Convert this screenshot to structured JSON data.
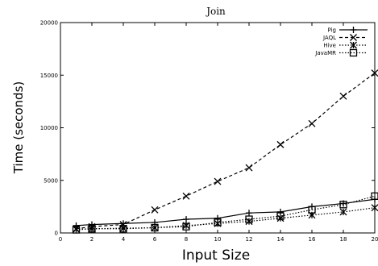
{
  "chart_data": {
    "type": "line",
    "title": "Join",
    "xlabel": "Input Size",
    "ylabel": "Time (seconds)",
    "xlim": [
      0,
      20
    ],
    "ylim": [
      0,
      20000
    ],
    "x_ticks": [
      "0",
      "2",
      "4",
      "6",
      "8",
      "10",
      "12",
      "14",
      "16",
      "18",
      "20"
    ],
    "y_ticks": [
      "0",
      "5000",
      "10000",
      "15000",
      "20000"
    ],
    "grid": false,
    "legend_position": "top-right",
    "series": [
      {
        "name": "Pig",
        "marker": "plus",
        "dash": "solid",
        "x": [
          1,
          2,
          4,
          6,
          8,
          10,
          12,
          14,
          16,
          18,
          20
        ],
        "y": [
          700,
          800,
          900,
          1000,
          1300,
          1400,
          1900,
          2000,
          2500,
          2800,
          3200
        ]
      },
      {
        "name": "JAQL",
        "marker": "x",
        "dash": "dashed",
        "x": [
          1,
          2,
          4,
          6,
          8,
          10,
          12,
          14,
          16,
          18,
          20
        ],
        "y": [
          400,
          600,
          800,
          2200,
          3500,
          4900,
          6200,
          8400,
          10400,
          13000,
          15200
        ]
      },
      {
        "name": "Hive",
        "marker": "asterisk",
        "dash": "dotted",
        "x": [
          1,
          2,
          4,
          6,
          8,
          10,
          12,
          14,
          16,
          18,
          20
        ],
        "y": [
          350,
          400,
          450,
          500,
          700,
          900,
          1100,
          1400,
          1700,
          2000,
          2400
        ]
      },
      {
        "name": "JavaMR",
        "marker": "square",
        "dash": "dotted",
        "x": [
          1,
          2,
          4,
          6,
          8,
          10,
          12,
          14,
          16,
          18,
          20
        ],
        "y": [
          300,
          400,
          400,
          500,
          600,
          1000,
          1300,
          1600,
          2200,
          2700,
          3500
        ]
      }
    ]
  }
}
